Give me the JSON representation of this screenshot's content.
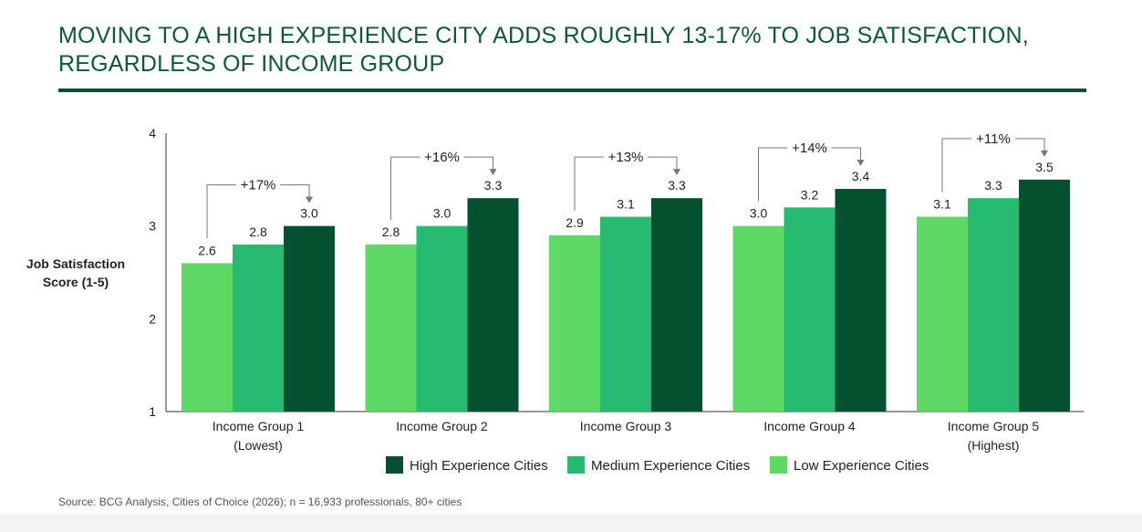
{
  "title_line1": "MOVING TO A HIGH EXPERIENCE CITY ADDS ROUGHLY 13-17% TO JOB SATISFACTION,",
  "title_line2": "REGARDLESS OF INCOME GROUP",
  "source": "Source: BCG Analysis, Cities of Choice (2026); n = 16,933 professionals, 80+ cities",
  "colors": {
    "low": "#5fd966",
    "medium": "#27bb72",
    "high": "#04512f",
    "title": "#0b5a35",
    "annotation": "#777777"
  },
  "chart_data": {
    "type": "bar",
    "ylabel": [
      "Job Satisfaction",
      "Score (1-5)"
    ],
    "ylim": [
      1,
      4
    ],
    "yticks": [
      "1",
      "2",
      "3",
      "4"
    ],
    "grid": false,
    "legend_position": "bottom",
    "categories": [
      [
        "Income Group 1",
        "(Lowest)"
      ],
      [
        "Income Group 2"
      ],
      [
        "Income Group 3"
      ],
      [
        "Income Group 4"
      ],
      [
        "Income Group 5",
        "(Highest)"
      ]
    ],
    "series": [
      {
        "name": "Low Experience Cities",
        "color_key": "low",
        "values": [
          2.6,
          2.8,
          2.9,
          3.0,
          3.1
        ],
        "labels": [
          "2.6",
          "2.8",
          "2.9",
          "3.0",
          "3.1"
        ]
      },
      {
        "name": "Medium Experience Cities",
        "color_key": "medium",
        "values": [
          2.8,
          3.0,
          3.1,
          3.2,
          3.3
        ],
        "labels": [
          "2.8",
          "3.0",
          "3.1",
          "3.2",
          "3.3"
        ]
      },
      {
        "name": "High Experience Cities",
        "color_key": "high",
        "values": [
          3.0,
          3.3,
          3.3,
          3.4,
          3.5
        ],
        "labels": [
          "3.0",
          "3.3",
          "3.3",
          "3.4",
          "3.5"
        ]
      }
    ],
    "annotations": [
      "+17%",
      "+16%",
      "+13%",
      "+14%",
      "+11%"
    ],
    "legend_order": [
      2,
      1,
      0
    ]
  }
}
